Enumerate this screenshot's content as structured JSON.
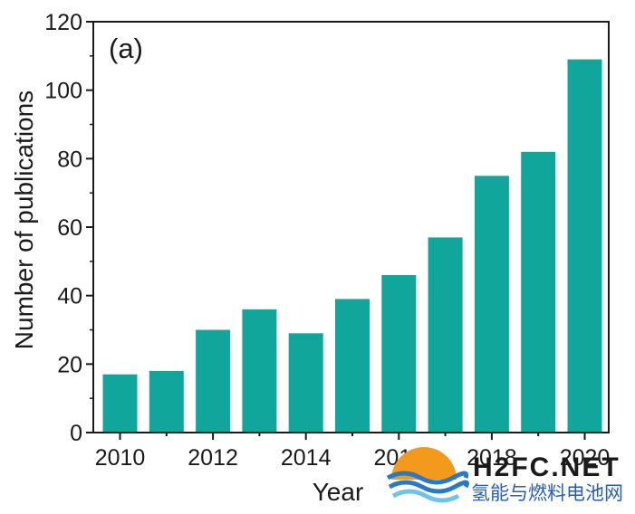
{
  "chart_data": {
    "type": "bar",
    "panel_label": "(a)",
    "xlabel": "Year",
    "ylabel": "Number of publications",
    "categories": [
      "2010",
      "2011",
      "2012",
      "2013",
      "2014",
      "2015",
      "2016",
      "2017",
      "2018",
      "2019",
      "2020"
    ],
    "values": [
      17,
      18,
      30,
      36,
      29,
      39,
      46,
      57,
      75,
      82,
      109
    ],
    "x_tick_labels": [
      "2010",
      "2012",
      "2014",
      "2016",
      "2018",
      "2020"
    ],
    "y_ticks": [
      0,
      20,
      40,
      60,
      80,
      100,
      120
    ],
    "ylim": [
      0,
      120
    ],
    "bar_color": "#11a69c",
    "grid": false,
    "legend": "none"
  },
  "watermark": {
    "latin_text": "H2FC.NET",
    "cjk_text": "氢能与燃料电池网",
    "colors": {
      "blue": "#2a5fb0",
      "orange": "#f39a1d",
      "wave_blue": "#2a78c8",
      "wave_light": "#6ec3e8"
    }
  }
}
